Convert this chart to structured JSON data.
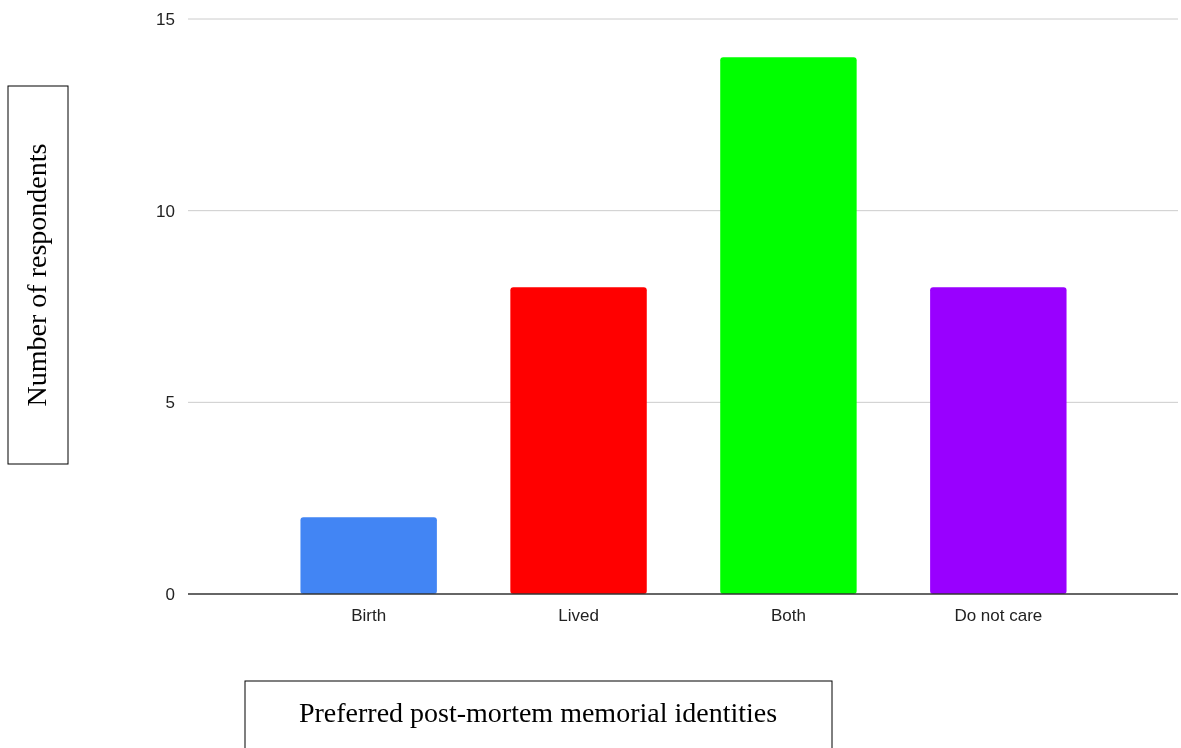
{
  "chart_data": {
    "type": "bar",
    "categories": [
      "Birth",
      "Lived",
      "Both",
      "Do not care"
    ],
    "values": [
      2,
      8,
      14,
      8
    ],
    "colors": [
      "#4285f4",
      "#ff0000",
      "#00ff00",
      "#9900ff"
    ],
    "ylim": [
      0,
      15
    ],
    "yticks": [
      0,
      5,
      10,
      15
    ],
    "grid": "y",
    "xlabel": "Preferred post-mortem memorial identities",
    "ylabel": "Number of respondents"
  }
}
